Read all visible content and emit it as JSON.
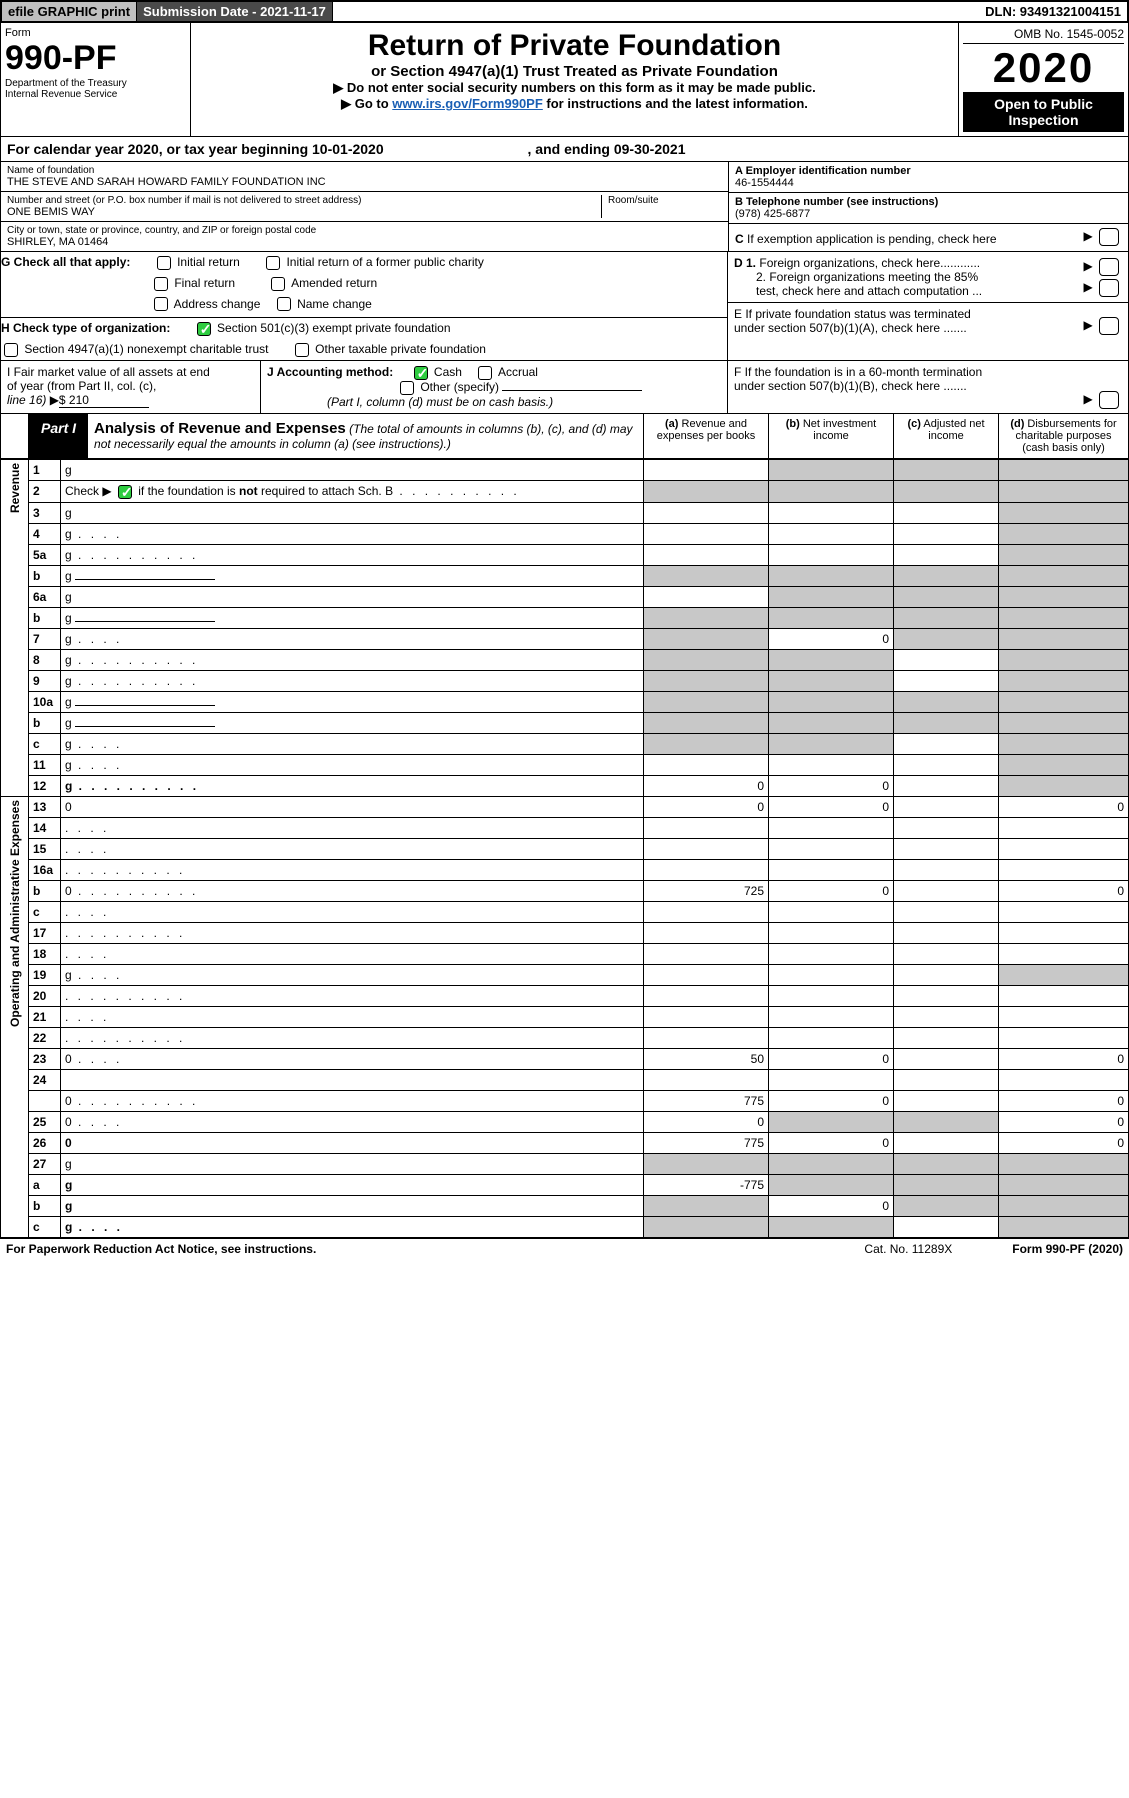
{
  "topbar": {
    "efile": "efile GRAPHIC print",
    "sub_label": "Submission Date - 2021-11-17",
    "dln": "DLN: 93491321004151"
  },
  "header": {
    "form_word": "Form",
    "form_number": "990-PF",
    "dept1": "Department of the Treasury",
    "dept2": "Internal Revenue Service",
    "title": "Return of Private Foundation",
    "subtitle": "or Section 4947(a)(1) Trust Treated as Private Foundation",
    "instr1": "▶ Do not enter social security numbers on this form as it may be made public.",
    "instr2_pre": "▶ Go to ",
    "instr2_link": "www.irs.gov/Form990PF",
    "instr2_post": " for instructions and the latest information.",
    "omb": "OMB No. 1545-0052",
    "year": "2020",
    "open": "Open to Public Inspection"
  },
  "cal": {
    "text_a": "For calendar year 2020, or tax year beginning 10-01-2020",
    "text_b": ", and ending 09-30-2021"
  },
  "info": {
    "name_label": "Name of foundation",
    "name": "THE STEVE AND SARAH HOWARD FAMILY FOUNDATION INC",
    "addr_label": "Number and street (or P.O. box number if mail is not delivered to street address)",
    "addr": "ONE BEMIS WAY",
    "room_label": "Room/suite",
    "city_label": "City or town, state or province, country, and ZIP or foreign postal code",
    "city": "SHIRLEY, MA  01464",
    "a_label": "A Employer identification number",
    "a_val": "46-1554444",
    "b_label": "B Telephone number (see instructions)",
    "b_val": "(978) 425-6877",
    "c_label": "C If exemption application is pending, check here"
  },
  "g": {
    "label": "G Check all that apply:",
    "opts": [
      "Initial return",
      "Final return",
      "Address change",
      "Initial return of a former public charity",
      "Amended return",
      "Name change"
    ]
  },
  "h": {
    "label": "H Check type of organization:",
    "opt1": "Section 501(c)(3) exempt private foundation",
    "opt2": "Section 4947(a)(1) nonexempt charitable trust",
    "opt3": "Other taxable private foundation"
  },
  "d": {
    "d1": "D 1. Foreign organizations, check here............",
    "d2a": "2. Foreign organizations meeting the 85%",
    "d2b": "test, check here and attach computation ..."
  },
  "e": {
    "e1": "E  If private foundation status was terminated",
    "e2": "under section 507(b)(1)(A), check here ......."
  },
  "i": {
    "line1": "I Fair market value of all assets at end",
    "line2": "of year (from Part II, col. (c),",
    "line3": "line 16)",
    "val": "$  210"
  },
  "j": {
    "label": "J Accounting method:",
    "cash": "Cash",
    "accrual": "Accrual",
    "other": "Other (specify)",
    "note": "(Part I, column (d) must be on cash basis.)"
  },
  "f": {
    "f1": "F  If the foundation is in a 60-month termination",
    "f2": "under section 507(b)(1)(B), check here ......."
  },
  "part1": {
    "label": "Part I",
    "title": "Analysis of Revenue and Expenses",
    "note": " (The total of amounts in columns (b), (c), and (d) may not necessarily equal the amounts in column (a) (see instructions).)",
    "cols": {
      "a": "(a)   Revenue and expenses per books",
      "b": "(b)   Net investment income",
      "c": "(c)   Adjusted net income",
      "d": "(d)  Disbursements for charitable purposes (cash basis only)"
    }
  },
  "sidebars": {
    "rev": "Revenue",
    "exp": "Operating and Administrative Expenses"
  },
  "rows": [
    {
      "n": "1",
      "d": "g",
      "a": "",
      "b": "g",
      "c": "g"
    },
    {
      "n": "2",
      "d": "g",
      "a": "g",
      "b": "g",
      "c": "g",
      "checked": true,
      "dots": true
    },
    {
      "n": "3",
      "d": "g",
      "a": "",
      "b": "",
      "c": ""
    },
    {
      "n": "4",
      "d": "g",
      "a": "",
      "b": "",
      "c": "",
      "ddots": true
    },
    {
      "n": "5a",
      "d": "g",
      "a": "",
      "b": "",
      "c": "",
      "dots": true
    },
    {
      "n": "b",
      "d": "g",
      "a": "g",
      "b": "g",
      "c": "g",
      "inline": true
    },
    {
      "n": "6a",
      "d": "g",
      "a": "",
      "b": "g",
      "c": "g"
    },
    {
      "n": "b",
      "d": "g",
      "a": "g",
      "b": "g",
      "c": "g",
      "inline": true
    },
    {
      "n": "7",
      "d": "g",
      "a": "g",
      "b": "0",
      "c": "g",
      "ddots": true
    },
    {
      "n": "8",
      "d": "g",
      "a": "g",
      "b": "g",
      "c": "",
      "dots": true
    },
    {
      "n": "9",
      "d": "g",
      "a": "g",
      "b": "g",
      "c": "",
      "dots": true
    },
    {
      "n": "10a",
      "d": "g",
      "a": "g",
      "b": "g",
      "c": "g",
      "inline": true
    },
    {
      "n": "b",
      "d": "g",
      "a": "g",
      "b": "g",
      "c": "g",
      "ddots": true,
      "inline": true
    },
    {
      "n": "c",
      "d": "g",
      "a": "g",
      "b": "g",
      "c": "",
      "ddots": true
    },
    {
      "n": "11",
      "d": "g",
      "a": "",
      "b": "",
      "c": "",
      "ddots": true
    },
    {
      "n": "12",
      "d": "g",
      "a": "0",
      "b": "0",
      "c": "",
      "bold": true,
      "dots": true
    },
    {
      "n": "13",
      "d": "0",
      "a": "0",
      "b": "0",
      "c": ""
    },
    {
      "n": "14",
      "d": "",
      "a": "",
      "b": "",
      "c": "",
      "ddots": true
    },
    {
      "n": "15",
      "d": "",
      "a": "",
      "b": "",
      "c": "",
      "ddots": true
    },
    {
      "n": "16a",
      "d": "",
      "a": "",
      "b": "",
      "c": "",
      "dots": true
    },
    {
      "n": "b",
      "d": "0",
      "a": "725",
      "b": "0",
      "c": "",
      "dots": true
    },
    {
      "n": "c",
      "d": "",
      "a": "",
      "b": "",
      "c": "",
      "ddots": true
    },
    {
      "n": "17",
      "d": "",
      "a": "",
      "b": "",
      "c": "",
      "dots": true
    },
    {
      "n": "18",
      "d": "",
      "a": "",
      "b": "",
      "c": "",
      "ddots": true
    },
    {
      "n": "19",
      "d": "g",
      "a": "",
      "b": "",
      "c": "",
      "ddots": true
    },
    {
      "n": "20",
      "d": "",
      "a": "",
      "b": "",
      "c": "",
      "dots": true
    },
    {
      "n": "21",
      "d": "",
      "a": "",
      "b": "",
      "c": "",
      "ddots": true
    },
    {
      "n": "22",
      "d": "",
      "a": "",
      "b": "",
      "c": "",
      "dots": true
    },
    {
      "n": "23",
      "d": "0",
      "a": "50",
      "b": "0",
      "c": "",
      "ddots": true
    },
    {
      "n": "24",
      "d": "",
      "a": "",
      "b": "",
      "c": "",
      "bold": true
    },
    {
      "n": "",
      "d": "0",
      "a": "775",
      "b": "0",
      "c": "",
      "dots": true
    },
    {
      "n": "25",
      "d": "0",
      "a": "0",
      "b": "g",
      "c": "g",
      "ddots": true
    },
    {
      "n": "26",
      "d": "0",
      "a": "775",
      "b": "0",
      "c": "",
      "bold": true
    },
    {
      "n": "27",
      "d": "g",
      "a": "g",
      "b": "g",
      "c": "g"
    },
    {
      "n": "a",
      "d": "g",
      "a": "-775",
      "b": "g",
      "c": "g",
      "bold": true
    },
    {
      "n": "b",
      "d": "g",
      "a": "g",
      "b": "0",
      "c": "g",
      "bold": true
    },
    {
      "n": "c",
      "d": "g",
      "a": "g",
      "b": "g",
      "c": "",
      "bold": true,
      "ddots": true
    }
  ],
  "footer": {
    "left": "For Paperwork Reduction Act Notice, see instructions.",
    "cat": "Cat. No. 11289X",
    "form": "Form 990-PF (2020)"
  },
  "colors": {
    "grey": "#c8c8c8",
    "link": "#1a5fb4",
    "green": "#2ecc40",
    "black": "#000000"
  }
}
